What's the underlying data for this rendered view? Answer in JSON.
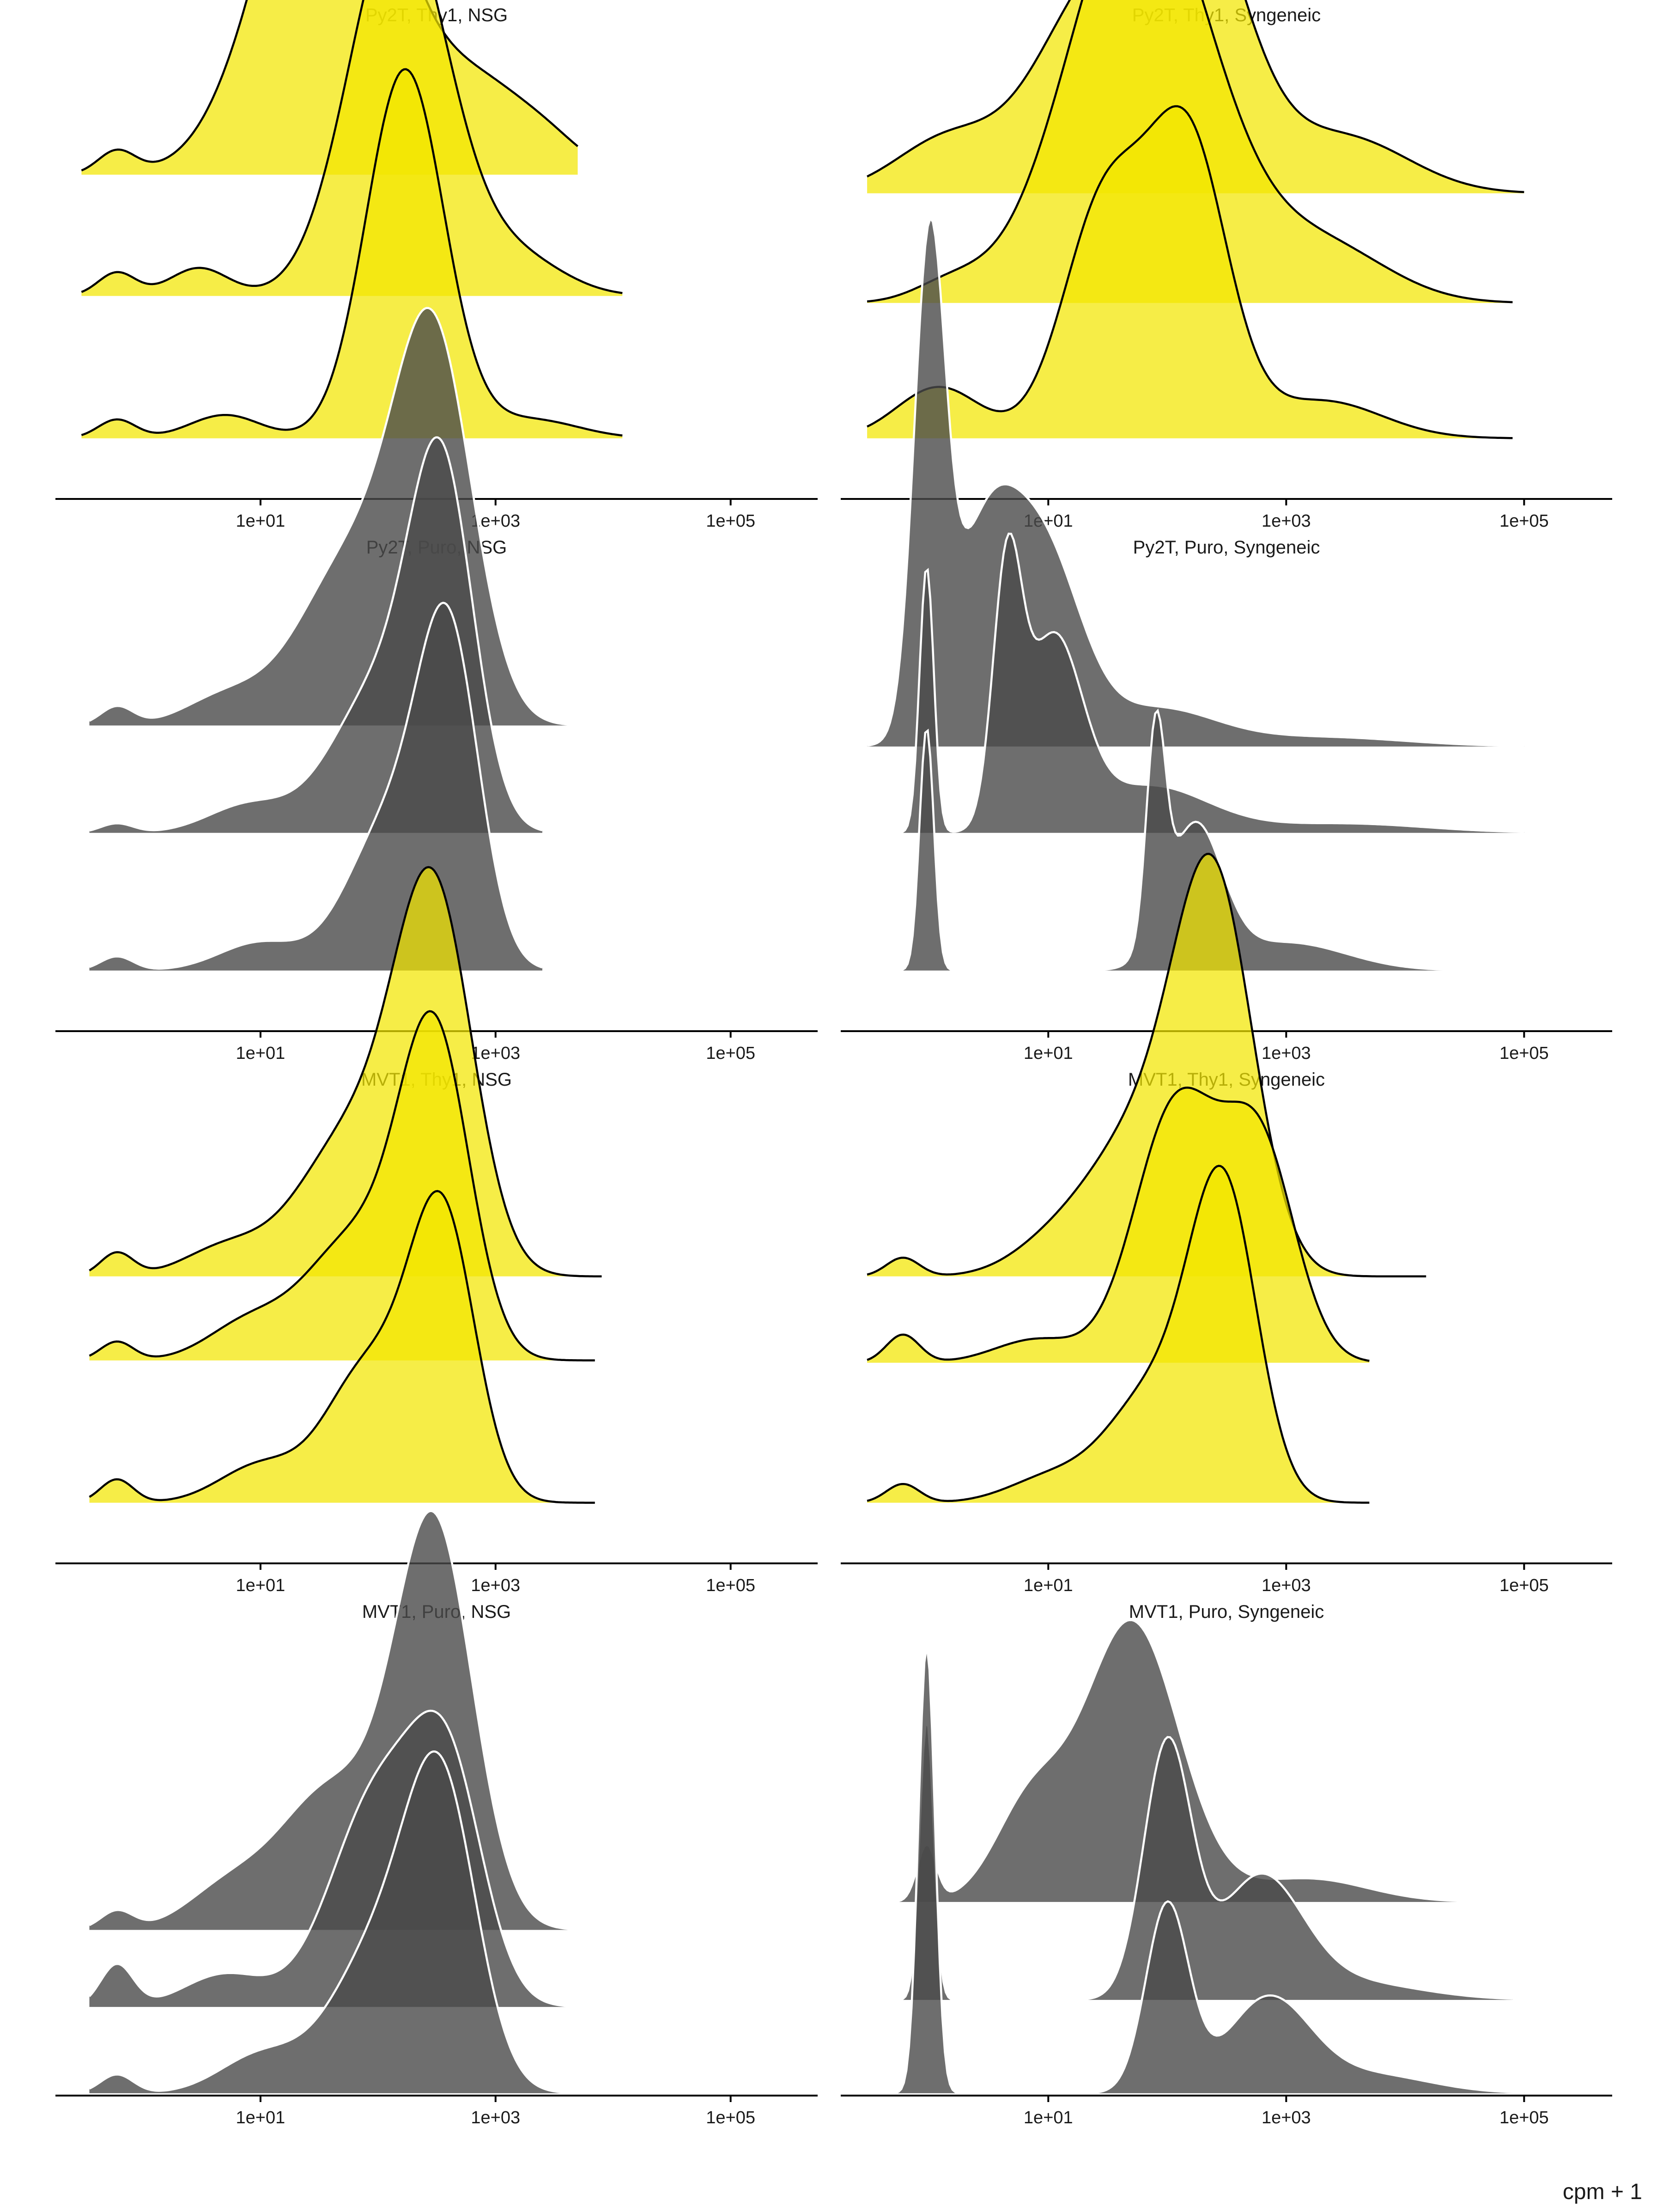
{
  "chart_data": {
    "type": "ridgeline",
    "xlabel": "cpm + 1",
    "x_scale": "log10",
    "xlim": [
      0.18,
      550000
    ],
    "x_ticks": [
      {
        "value": 10,
        "label": "1e+01"
      },
      {
        "value": 1000,
        "label": "1e+03"
      },
      {
        "value": 100000,
        "label": "1e+05"
      }
    ],
    "colors": {
      "Thy1": "#f2e600",
      "Puro": "#4a4a4a",
      "Thy1_outline": "#000000",
      "Puro_outline": "#ffffff"
    },
    "panels": [
      {
        "title": "Py2T, Thy1, NSG",
        "marker": "Thy1",
        "ridges": [
          {
            "baseline": 0.695,
            "xmin": 0.3,
            "xmax": 5000,
            "peaks": [
              [
                0.6,
                0.05,
                0.16
              ],
              [
                40,
                0.88,
                0.55
              ],
              [
                800,
                0.16,
                0.4
              ],
              [
                3000,
                0.05,
                0.3
              ]
            ]
          },
          {
            "baseline": 0.435,
            "xmin": 0.3,
            "xmax": 12000,
            "peaks": [
              [
                0.6,
                0.05,
                0.16
              ],
              [
                3,
                0.06,
                0.25
              ],
              [
                150,
                0.82,
                0.42
              ],
              [
                1500,
                0.08,
                0.4
              ]
            ]
          },
          {
            "baseline": 0.13,
            "xmin": 0.3,
            "xmax": 12000,
            "peaks": [
              [
                0.6,
                0.04,
                0.16
              ],
              [
                5,
                0.05,
                0.3
              ],
              [
                170,
                0.79,
                0.33
              ],
              [
                2000,
                0.04,
                0.4
              ]
            ]
          }
        ]
      },
      {
        "title": "Py2T, Thy1, Syngeneic",
        "marker": "Thy1",
        "ridges": [
          {
            "baseline": 0.655,
            "xmin": 0.3,
            "xmax": 100000,
            "peaks": [
              [
                1.5,
                0.12,
                0.45
              ],
              [
                20,
                0.36,
                0.45
              ],
              [
                150,
                0.66,
                0.45
              ],
              [
                3000,
                0.12,
                0.55
              ]
            ]
          },
          {
            "baseline": 0.42,
            "xmin": 0.3,
            "xmax": 80000,
            "peaks": [
              [
                1.5,
                0.04,
                0.3
              ],
              [
                60,
                0.91,
                0.6
              ],
              [
                2000,
                0.12,
                0.55
              ]
            ]
          },
          {
            "baseline": 0.13,
            "xmin": 0.3,
            "xmax": 80000,
            "peaks": [
              [
                1.2,
                0.11,
                0.35
              ],
              [
                30,
                0.5,
                0.35
              ],
              [
                150,
                0.62,
                0.33
              ],
              [
                2000,
                0.08,
                0.5
              ]
            ]
          }
        ]
      },
      {
        "title": "Py2T, Puro, NSG",
        "marker": "Puro",
        "ridges": [
          {
            "baseline": 0.655,
            "xmin": 0.35,
            "xmax": 8000,
            "peaks": [
              [
                0.6,
                0.04,
                0.14
              ],
              [
                5,
                0.06,
                0.35
              ],
              [
                60,
                0.35,
                0.45
              ],
              [
                300,
                0.78,
                0.33
              ]
            ]
          },
          {
            "baseline": 0.425,
            "xmin": 0.35,
            "xmax": 2500,
            "peaks": [
              [
                0.6,
                0.02,
                0.14
              ],
              [
                8,
                0.06,
                0.35
              ],
              [
                100,
                0.3,
                0.4
              ],
              [
                350,
                0.72,
                0.27
              ]
            ]
          },
          {
            "baseline": 0.13,
            "xmin": 0.35,
            "xmax": 2500,
            "peaks": [
              [
                0.6,
                0.03,
                0.14
              ],
              [
                10,
                0.06,
                0.35
              ],
              [
                120,
                0.3,
                0.35
              ],
              [
                400,
                0.68,
                0.26
              ]
            ]
          }
        ]
      },
      {
        "title": "Py2T, Puro, Syngeneic",
        "marker": "Puro",
        "ridges": [
          {
            "baseline": 0.61,
            "xmin": 0.3,
            "xmax": 100000,
            "peaks": [
              [
                1,
                1.0,
                0.13
              ],
              [
                3,
                0.45,
                0.3
              ],
              [
                10,
                0.35,
                0.3
              ],
              [
                80,
                0.08,
                0.5
              ],
              [
                2000,
                0.02,
                0.7
              ]
            ]
          },
          {
            "baseline": 0.425,
            "xmin": 0.3,
            "xmax": 100000,
            "peaks": [
              [
                0.95,
                0.57,
                0.06
              ],
              [
                4.5,
                0.52,
                0.12
              ],
              [
                11,
                0.4,
                0.24
              ],
              [
                70,
                0.1,
                0.5
              ],
              [
                3000,
                0.02,
                0.7
              ]
            ]
          },
          {
            "baseline": 0.13,
            "xmin": 0.3,
            "xmax": 100000,
            "peaks": [
              [
                0.95,
                0.52,
                0.06
              ],
              [
                80,
                0.44,
                0.08
              ],
              [
                170,
                0.3,
                0.23
              ],
              [
                1000,
                0.06,
                0.5
              ]
            ]
          }
        ]
      },
      {
        "title": "MVT1, Thy1, NSG",
        "marker": "Thy1",
        "ridges": [
          {
            "baseline": 0.615,
            "xmin": 0.35,
            "xmax": 8000,
            "peaks": [
              [
                0.6,
                0.05,
                0.14
              ],
              [
                5,
                0.06,
                0.35
              ],
              [
                60,
                0.3,
                0.45
              ],
              [
                300,
                0.78,
                0.33
              ]
            ]
          },
          {
            "baseline": 0.435,
            "xmin": 0.35,
            "xmax": 7000,
            "peaks": [
              [
                0.6,
                0.04,
                0.14
              ],
              [
                8,
                0.08,
                0.35
              ],
              [
                60,
                0.25,
                0.4
              ],
              [
                300,
                0.69,
                0.3
              ]
            ]
          },
          {
            "baseline": 0.13,
            "xmin": 0.35,
            "xmax": 7000,
            "peaks": [
              [
                0.6,
                0.05,
                0.14
              ],
              [
                10,
                0.08,
                0.35
              ],
              [
                80,
                0.28,
                0.35
              ],
              [
                350,
                0.61,
                0.28
              ]
            ]
          }
        ]
      },
      {
        "title": "MVT1, Thy1, Syngeneic",
        "marker": "Thy1",
        "ridges": [
          {
            "baseline": 0.615,
            "xmin": 0.3,
            "xmax": 15000,
            "peaks": [
              [
                0.6,
                0.04,
                0.14
              ],
              [
                10,
                0.05,
                0.35
              ],
              [
                60,
                0.3,
                0.45
              ],
              [
                250,
                0.78,
                0.33
              ]
            ]
          },
          {
            "baseline": 0.43,
            "xmin": 0.3,
            "xmax": 5000,
            "peaks": [
              [
                0.6,
                0.06,
                0.14
              ],
              [
                8,
                0.05,
                0.35
              ],
              [
                120,
                0.55,
                0.35
              ],
              [
                600,
                0.45,
                0.3
              ]
            ]
          },
          {
            "baseline": 0.13,
            "xmin": 0.3,
            "xmax": 5000,
            "peaks": [
              [
                0.6,
                0.04,
                0.14
              ],
              [
                10,
                0.05,
                0.35
              ],
              [
                80,
                0.24,
                0.4
              ],
              [
                300,
                0.63,
                0.28
              ]
            ]
          }
        ]
      },
      {
        "title": "MVT1, Puro, NSG",
        "marker": "Puro",
        "ridges": [
          {
            "baseline": 0.355,
            "xmin": 0.35,
            "xmax": 8000,
            "peaks": [
              [
                0.6,
                0.04,
                0.14
              ],
              [
                5,
                0.08,
                0.35
              ],
              [
                40,
                0.3,
                0.45
              ],
              [
                300,
                0.85,
                0.33
              ]
            ]
          },
          {
            "baseline": 0.19,
            "xmin": 0.35,
            "xmax": 8000,
            "peaks": [
              [
                0.6,
                0.09,
                0.14
              ],
              [
                5,
                0.07,
                0.35
              ],
              [
                100,
                0.45,
                0.4
              ],
              [
                400,
                0.45,
                0.3
              ]
            ]
          },
          {
            "baseline": 0.005,
            "xmin": 0.35,
            "xmax": 5000,
            "peaks": [
              [
                0.6,
                0.04,
                0.14
              ],
              [
                10,
                0.08,
                0.35
              ],
              [
                100,
                0.3,
                0.4
              ],
              [
                350,
                0.6,
                0.3
              ]
            ]
          }
        ]
      },
      {
        "title": "MVT1, Puro, Syngeneic",
        "marker": "Puro",
        "ridges": [
          {
            "baseline": 0.415,
            "xmin": 0.25,
            "xmax": 100000,
            "peaks": [
              [
                0.95,
                0.12,
                0.08
              ],
              [
                7,
                0.2,
                0.3
              ],
              [
                50,
                0.6,
                0.4
              ],
              [
                1500,
                0.05,
                0.5
              ]
            ]
          },
          {
            "baseline": 0.205,
            "xmin": 0.25,
            "xmax": 80000,
            "peaks": [
              [
                0.95,
                0.6,
                0.06
              ],
              [
                100,
                0.54,
                0.2
              ],
              [
                600,
                0.25,
                0.35
              ],
              [
                3000,
                0.04,
                0.6
              ]
            ]
          },
          {
            "baseline": 0.005,
            "xmin": 0.25,
            "xmax": 100000,
            "peaks": [
              [
                0.95,
                0.96,
                0.07
              ],
              [
                100,
                0.4,
                0.18
              ],
              [
                700,
                0.2,
                0.35
              ],
              [
                5000,
                0.04,
                0.5
              ]
            ]
          }
        ]
      }
    ]
  }
}
